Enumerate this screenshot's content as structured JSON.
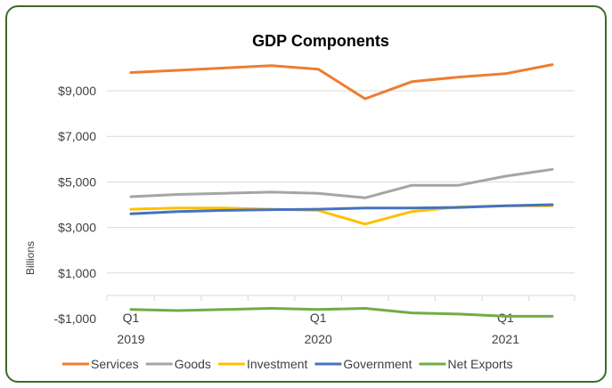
{
  "chart_data": {
    "type": "line",
    "title": "GDP Components",
    "ylabel": "Billions",
    "xlabel": "",
    "ylim": [
      -1000,
      11000
    ],
    "y_ticks": [
      "$9,000",
      "$7,000",
      "$5,000",
      "$3,000",
      "$1,000",
      "-$1,000"
    ],
    "y_tick_values": [
      9000,
      7000,
      5000,
      3000,
      1000,
      -1000
    ],
    "x_tick_labels": [
      {
        "quarter": "Q1",
        "year": "2019",
        "index": 0
      },
      {
        "quarter": "Q1",
        "year": "2020",
        "index": 4
      },
      {
        "quarter": "Q1",
        "year": "2021",
        "index": 8
      }
    ],
    "x": [
      "2019 Q1",
      "2019 Q2",
      "2019 Q3",
      "2019 Q4",
      "2020 Q1",
      "2020 Q2",
      "2020 Q3",
      "2020 Q4",
      "2021 Q1",
      "2021 Q2"
    ],
    "grid": "horizontal",
    "legend_position": "bottom",
    "series": [
      {
        "name": "Services",
        "color": "#ED7D31",
        "values": [
          9800,
          9900,
          10000,
          10100,
          9950,
          8650,
          9400,
          9600,
          9750,
          10150
        ]
      },
      {
        "name": "Goods",
        "color": "#A5A5A5",
        "values": [
          4350,
          4450,
          4500,
          4550,
          4500,
          4300,
          4850,
          4850,
          5250,
          5550
        ]
      },
      {
        "name": "Investment",
        "color": "#FFC000",
        "values": [
          3800,
          3850,
          3850,
          3800,
          3750,
          3150,
          3700,
          3900,
          3950,
          3950
        ]
      },
      {
        "name": "Government",
        "color": "#4472C4",
        "values": [
          3600,
          3700,
          3750,
          3780,
          3800,
          3850,
          3850,
          3880,
          3950,
          4000
        ]
      },
      {
        "name": "Net Exports",
        "color": "#70AD47",
        "values": [
          -600,
          -650,
          -600,
          -550,
          -600,
          -550,
          -750,
          -800,
          -900,
          -900
        ]
      }
    ]
  }
}
